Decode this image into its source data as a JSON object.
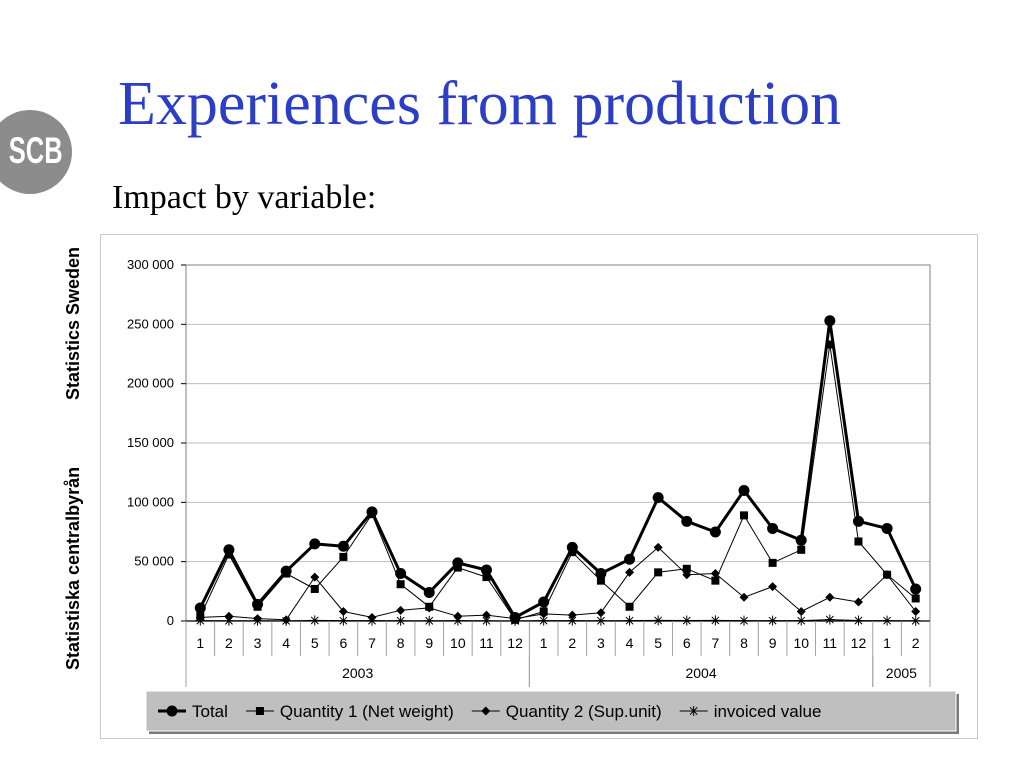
{
  "slide": {
    "title": "Experiences from production",
    "subtitle": "Impact by variable:",
    "logo_text": "SCB",
    "side_label_1": "Statistiska centralbyrån",
    "side_label_2": "Statistics Sweden"
  },
  "colors": {
    "title": "#2b3ec5",
    "logo": "#8c8c8c",
    "legend_bg": "#bfbfbf"
  },
  "chart_data": {
    "type": "line",
    "title": "",
    "xlabel": "",
    "ylabel": "",
    "ylim": [
      0,
      300000
    ],
    "yticks": [
      "0",
      "50 000",
      "100 000",
      "150 000",
      "200 000",
      "250 000",
      "300 000"
    ],
    "grid": true,
    "legend_position": "bottom",
    "categories": [
      "1",
      "2",
      "3",
      "4",
      "5",
      "6",
      "7",
      "8",
      "9",
      "10",
      "11",
      "12",
      "1",
      "2",
      "3",
      "4",
      "5",
      "6",
      "7",
      "8",
      "9",
      "10",
      "11",
      "12",
      "1",
      "2"
    ],
    "years": [
      {
        "label": "2003",
        "from": 0,
        "to": 11
      },
      {
        "label": "2004",
        "from": 12,
        "to": 23
      },
      {
        "label": "2005",
        "from": 24,
        "to": 25
      }
    ],
    "series": [
      {
        "name": "Total",
        "marker": "circle",
        "values": [
          11000,
          60000,
          14000,
          42000,
          65000,
          63000,
          92000,
          40000,
          24000,
          49000,
          43000,
          3000,
          16000,
          62000,
          40000,
          52000,
          104000,
          84000,
          75000,
          110000,
          78000,
          68000,
          253000,
          84000,
          78000,
          27000
        ]
      },
      {
        "name": "Quantity 1 (Net weight)",
        "marker": "square",
        "values": [
          4000,
          56000,
          12000,
          40000,
          27000,
          54000,
          90000,
          31000,
          12000,
          45000,
          37000,
          1000,
          8000,
          58000,
          34000,
          12000,
          41000,
          44000,
          34000,
          89000,
          49000,
          60000,
          233000,
          67000,
          39000,
          19000
        ]
      },
      {
        "name": "Quantity 2 (Sup.unit)",
        "marker": "diamond",
        "values": [
          3000,
          4000,
          2000,
          1000,
          37000,
          8000,
          3000,
          9000,
          11000,
          4000,
          5000,
          2000,
          6000,
          5000,
          7000,
          41000,
          62000,
          39000,
          40000,
          20000,
          29000,
          8000,
          20000,
          16000,
          39000,
          8000
        ]
      },
      {
        "name": "invoiced value",
        "marker": "star",
        "values": [
          300,
          200,
          200,
          100,
          500,
          300,
          300,
          200,
          200,
          300,
          200,
          100,
          300,
          300,
          200,
          300,
          500,
          400,
          500,
          300,
          300,
          300,
          1200,
          400,
          300,
          200
        ]
      }
    ]
  }
}
